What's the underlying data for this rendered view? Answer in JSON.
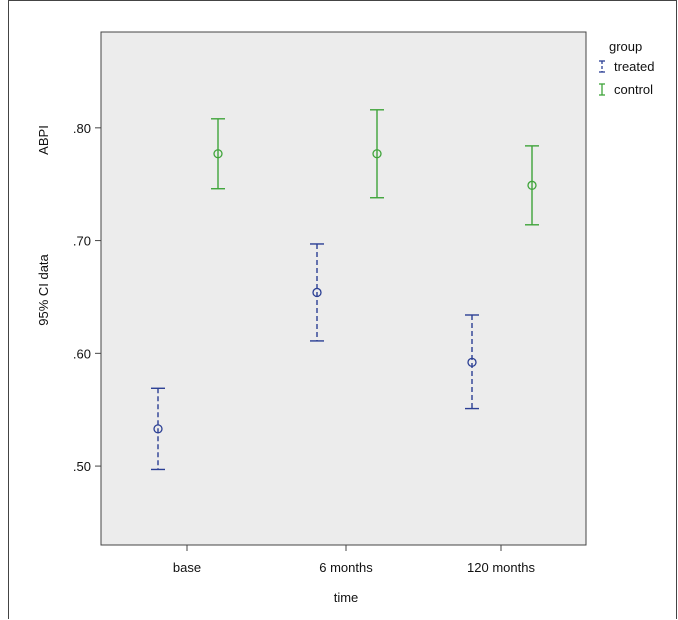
{
  "chart_data": {
    "type": "scatter",
    "title": "",
    "xlabel": "time",
    "ylabel_lines": [
      "ABPI",
      "95% CI data"
    ],
    "categories": [
      "base",
      "6 months",
      "120 months"
    ],
    "ylim": [
      0.43,
      0.885
    ],
    "yticks": [
      0.5,
      0.6,
      0.7,
      0.8
    ],
    "ytick_labels": [
      ".50",
      ".60",
      ".70",
      ".80"
    ],
    "grid": false,
    "legend": {
      "title": "group",
      "placement": "top-right",
      "entries": [
        "treated",
        "control"
      ]
    },
    "series": [
      {
        "name": "treated",
        "color": "#2b3f94",
        "dashed": true,
        "means": [
          0.533,
          0.654,
          0.592
        ],
        "lower": [
          0.497,
          0.611,
          0.551
        ],
        "upper": [
          0.569,
          0.697,
          0.634
        ]
      },
      {
        "name": "control",
        "color": "#3fa43a",
        "dashed": false,
        "means": [
          0.777,
          0.777,
          0.749
        ],
        "lower": [
          0.746,
          0.738,
          0.714
        ],
        "upper": [
          0.808,
          0.816,
          0.784
        ]
      }
    ]
  }
}
